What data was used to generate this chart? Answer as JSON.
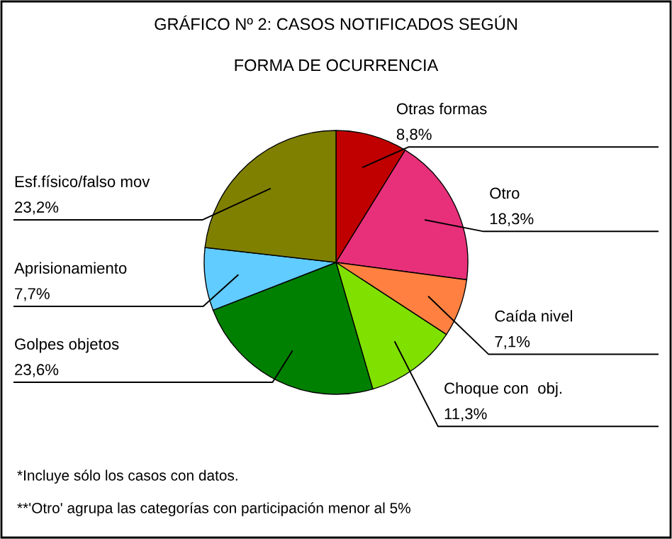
{
  "chart_data": {
    "type": "pie",
    "title": "GRÁFICO Nº 2: CASOS NOTIFICADOS SEGÚN\nFORMA DE OCURRENCIA",
    "categories": [
      "Otras formas",
      "Otro",
      "Caída nivel",
      "Choque con  obj.",
      "Golpes objetos",
      "Aprisionamiento",
      "Esf.físico/falso mov"
    ],
    "values": [
      8.8,
      18.3,
      7.1,
      11.3,
      23.6,
      7.7,
      23.2
    ],
    "value_labels": [
      "8,8%",
      "18,3%",
      "7,1%",
      "11,3%",
      "23,6%",
      "7,7%",
      "23,2%"
    ],
    "colors": [
      "#c00000",
      "#e8307a",
      "#ff8040",
      "#80e000",
      "#008000",
      "#60ccff",
      "#808000"
    ],
    "annotations": [
      "*Incluye sólo los casos con datos.",
      "**'Otro' agrupa las categorías con participación menor al 5%"
    ],
    "legend": false
  }
}
